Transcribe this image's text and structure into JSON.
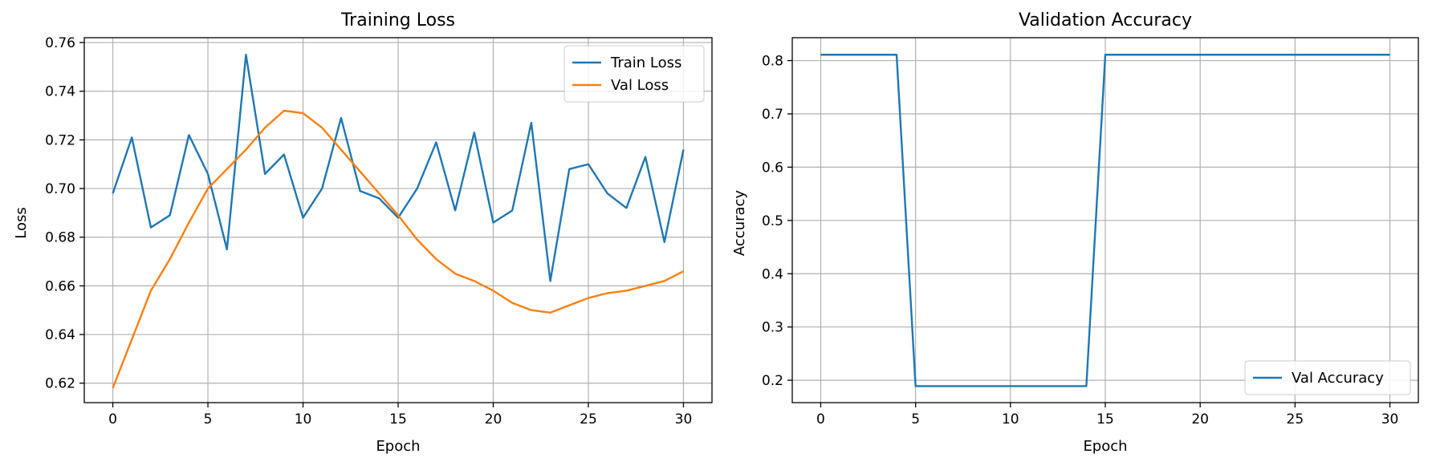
{
  "chart_data": [
    {
      "type": "line",
      "title": "Training Loss",
      "xlabel": "Epoch",
      "ylabel": "Loss",
      "xlim": [
        -1.5,
        31.5
      ],
      "ylim": [
        0.612,
        0.762
      ],
      "xticks": [
        0,
        5,
        10,
        15,
        20,
        25,
        30
      ],
      "yticks": [
        0.62,
        0.64,
        0.66,
        0.68,
        0.7,
        0.72,
        0.74,
        0.76
      ],
      "ytick_decimals": 2,
      "grid": true,
      "legend_position": "top-right",
      "x": [
        0,
        1,
        2,
        3,
        4,
        5,
        6,
        7,
        8,
        9,
        10,
        11,
        12,
        13,
        14,
        15,
        16,
        17,
        18,
        19,
        20,
        21,
        22,
        23,
        24,
        25,
        26,
        27,
        28,
        29,
        30
      ],
      "series": [
        {
          "name": "Train Loss",
          "color": "#1f77b4",
          "values": [
            0.698,
            0.721,
            0.684,
            0.689,
            0.722,
            0.706,
            0.675,
            0.755,
            0.706,
            0.714,
            0.688,
            0.7,
            0.729,
            0.699,
            0.696,
            0.688,
            0.7,
            0.719,
            0.691,
            0.723,
            0.686,
            0.691,
            0.727,
            0.662,
            0.708,
            0.71,
            0.698,
            0.692,
            0.713,
            0.678,
            0.716
          ]
        },
        {
          "name": "Val Loss",
          "color": "#ff7f0e",
          "values": [
            0.618,
            0.638,
            0.658,
            0.671,
            0.686,
            0.7,
            0.708,
            0.716,
            0.725,
            0.732,
            0.731,
            0.725,
            0.716,
            0.707,
            0.698,
            0.689,
            0.679,
            0.671,
            0.665,
            0.662,
            0.658,
            0.653,
            0.65,
            0.649,
            0.652,
            0.655,
            0.657,
            0.658,
            0.66,
            0.662,
            0.666
          ]
        }
      ]
    },
    {
      "type": "line",
      "title": "Validation Accuracy",
      "xlabel": "Epoch",
      "ylabel": "Accuracy",
      "xlim": [
        -1.5,
        31.5
      ],
      "ylim": [
        0.158,
        0.843
      ],
      "xticks": [
        0,
        5,
        10,
        15,
        20,
        25,
        30
      ],
      "yticks": [
        0.2,
        0.3,
        0.4,
        0.5,
        0.6,
        0.7,
        0.8
      ],
      "ytick_decimals": 1,
      "grid": true,
      "legend_position": "bottom-right",
      "x": [
        0,
        1,
        2,
        3,
        4,
        5,
        6,
        7,
        8,
        9,
        10,
        11,
        12,
        13,
        14,
        15,
        16,
        17,
        18,
        19,
        20,
        21,
        22,
        23,
        24,
        25,
        26,
        27,
        28,
        29,
        30
      ],
      "series": [
        {
          "name": "Val Accuracy",
          "color": "#1f77b4",
          "values": [
            0.811,
            0.811,
            0.811,
            0.811,
            0.811,
            0.189,
            0.189,
            0.189,
            0.189,
            0.189,
            0.189,
            0.189,
            0.189,
            0.189,
            0.189,
            0.811,
            0.811,
            0.811,
            0.811,
            0.811,
            0.811,
            0.811,
            0.811,
            0.811,
            0.811,
            0.811,
            0.811,
            0.811,
            0.811,
            0.811,
            0.811
          ]
        }
      ]
    }
  ]
}
